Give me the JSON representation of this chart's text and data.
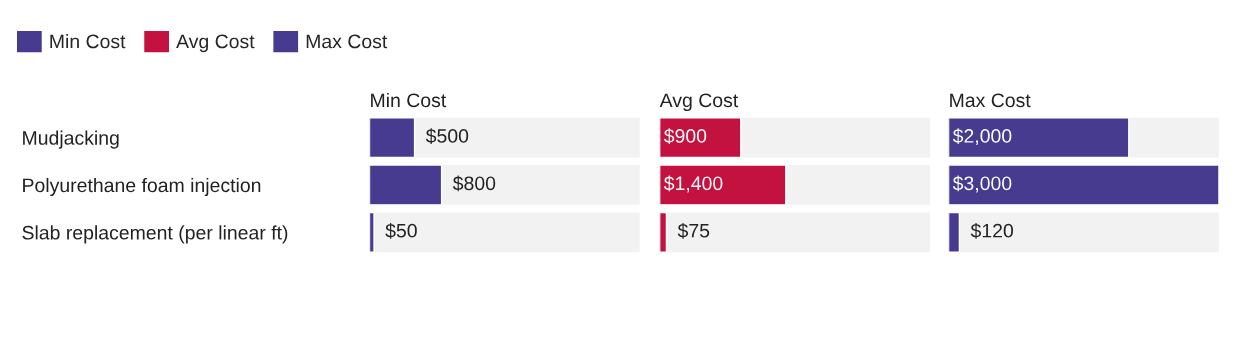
{
  "chart_data": [
    {
      "type": "bar",
      "orientation": "horizontal",
      "title": "Min Cost",
      "categories": [
        "Mudjacking",
        "Polyurethane foam injection",
        "Slab replacement (per linear ft)"
      ],
      "series": [
        {
          "name": "Min Cost",
          "color": "#463b8f",
          "values": [
            500,
            800,
            50
          ],
          "value_labels": [
            "$500",
            "$800",
            "$50"
          ]
        }
      ],
      "xlim": [
        0,
        3000
      ],
      "tick_labels": "y",
      "legend": "top left"
    },
    {
      "type": "bar",
      "orientation": "horizontal",
      "title": "Avg Cost",
      "categories": [
        null,
        null,
        null
      ],
      "series": [
        {
          "name": "Avg Cost",
          "color": "#c3123f",
          "values": [
            900,
            1400,
            75
          ],
          "value_labels": [
            "$900",
            "$1,400",
            "$75"
          ]
        }
      ],
      "xlim": [
        0,
        3000
      ],
      "tick_labels": false
    },
    {
      "type": "bar",
      "orientation": "horizontal",
      "title": "Max Cost",
      "categories": [
        null,
        null,
        null
      ],
      "series": [
        {
          "name": "Max Cost",
          "color": "#463b8f",
          "values": [
            2000,
            3000,
            120
          ],
          "value_labels": [
            "$2,000",
            "$3,000",
            "$120"
          ]
        }
      ],
      "xlim": [
        0,
        3000
      ],
      "tick_labels": false
    }
  ]
}
